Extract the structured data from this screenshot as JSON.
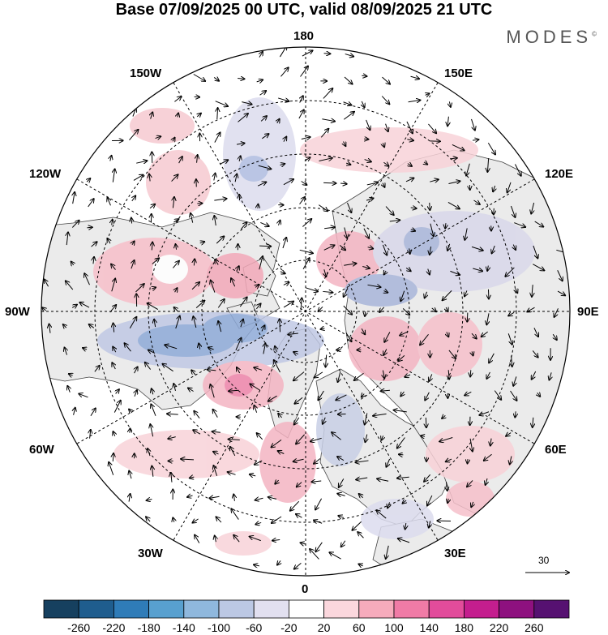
{
  "title": "Base 07/09/2025 00 UTC, valid 08/09/2025 21 UTC",
  "brand": "MODES",
  "brand_mark": "©",
  "meridians": {
    "m180": "180",
    "m150w": "150W",
    "m150e": "150E",
    "m120w": "120W",
    "m120e": "120E",
    "m90w": "90W",
    "m90e": "90E",
    "m60w": "60W",
    "m60e": "60E",
    "m30w": "30W",
    "m30e": "30E",
    "m0": "0"
  },
  "vector_scale": "30",
  "colorbar": {
    "colors": [
      "#16405f",
      "#1f5d8e",
      "#2f7cb8",
      "#58a0cf",
      "#8fb8dd",
      "#bcc8e4",
      "#e2e0f0",
      "#ffffff",
      "#fbd7dd",
      "#f6abbc",
      "#f07ba6",
      "#e24c9b",
      "#c41e8e",
      "#8e117f",
      "#561171"
    ],
    "labels": [
      "-260",
      "-220",
      "-180",
      "-140",
      "-100",
      "-60",
      "-20",
      "20",
      "60",
      "100",
      "140",
      "180",
      "220",
      "260"
    ]
  }
}
